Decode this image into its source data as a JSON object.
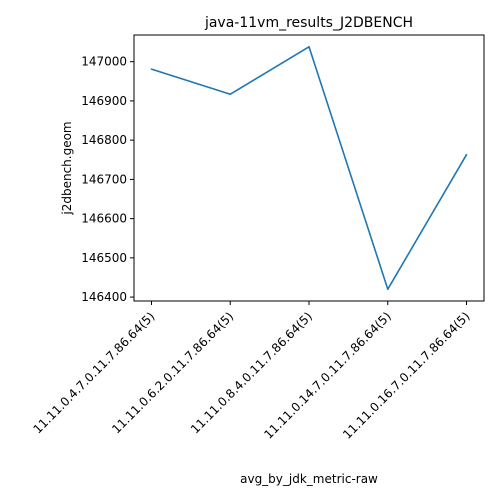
{
  "chart_data": {
    "type": "line",
    "title": "java-11vm_results_J2DBENCH",
    "xlabel": "avg_by_jdk_metric-raw",
    "ylabel": "j2dbench.geom",
    "categories": [
      "11.11.0.4.7.0.11.7.86.64(5)",
      "11.11.0.6.2.0.11.7.86.64(5)",
      "11.11.0.8.4.0.11.7.86.64(5)",
      "11.11.0.14.7.0.11.7.86.64(5)",
      "11.11.0.16.7.0.11.7.86.64(5)"
    ],
    "series": [
      {
        "values": [
          146981,
          146917,
          147038,
          146420,
          146763
        ],
        "color": "#1f77b4"
      }
    ],
    "ylim": [
      146390,
      147068
    ],
    "yticks": [
      146400,
      146500,
      146600,
      146700,
      146800,
      146900,
      147000
    ],
    "grid": false,
    "legend": "none"
  }
}
